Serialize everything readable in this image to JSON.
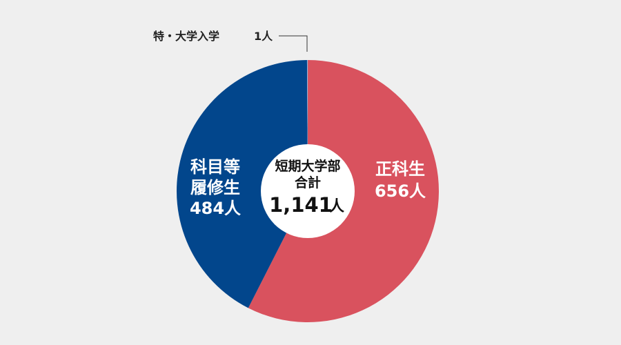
{
  "chart_data": {
    "type": "pie",
    "style": "donut",
    "background": "#efefef",
    "slices": [
      {
        "name": "正科生",
        "value": 656,
        "count_label": "656人",
        "color": "#d9525e",
        "label_lines": [
          "正科生"
        ]
      },
      {
        "name": "科目等履修生",
        "value": 484,
        "count_label": "484人",
        "color": "#02468c",
        "label_lines": [
          "科目等",
          "履修生"
        ]
      },
      {
        "name": "特・大学入学",
        "value": 1,
        "count_label": "1人",
        "color": "#8fb3d9",
        "label_lines": [
          "特・大学入学"
        ]
      }
    ],
    "center": {
      "line1": "短期大学部",
      "line2": "合計",
      "total": "1,141",
      "unit": "人"
    },
    "callout": {
      "text": "特・大学入学",
      "count": "1人"
    }
  }
}
